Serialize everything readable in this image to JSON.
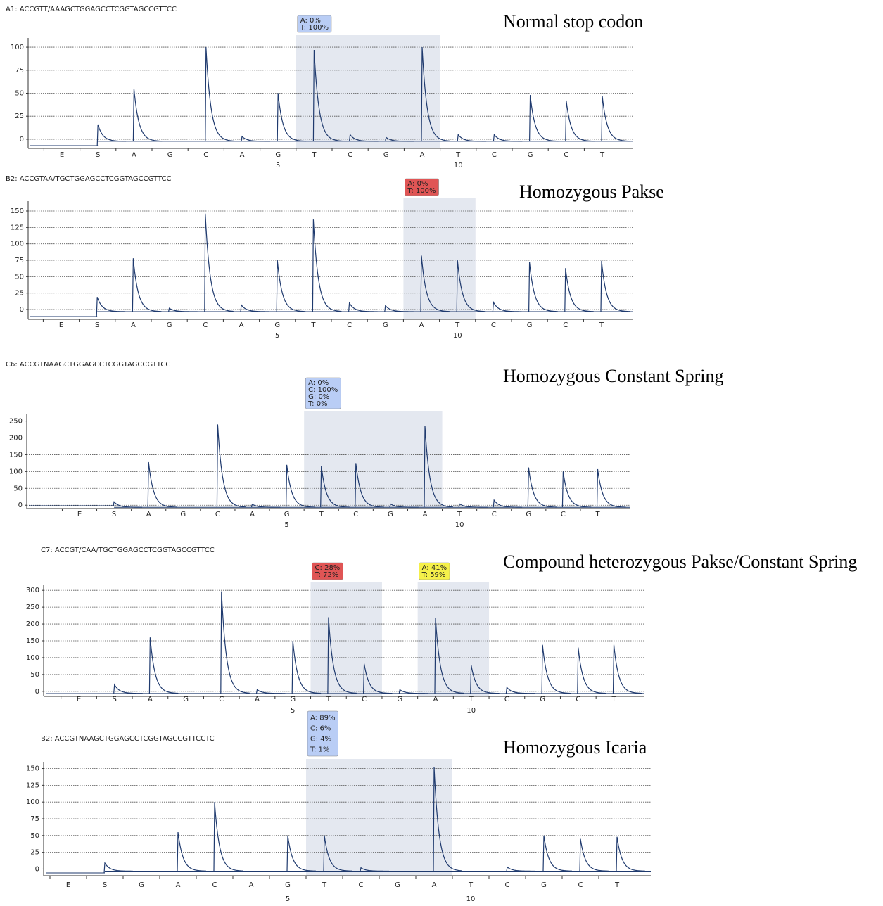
{
  "chart_data": [
    {
      "type": "pyrogram",
      "title": "A1: ACCGTT/AAAGCTGGAGCCTCGGTAGCCGTTCC",
      "annotation": "Normal stop codon",
      "categories": [
        "E",
        "S",
        "A",
        "G",
        "C",
        "A",
        "G",
        "T",
        "C",
        "G",
        "A",
        "T",
        "C",
        "G",
        "C",
        "T"
      ],
      "values": [
        0,
        16,
        55,
        0,
        100,
        3,
        50,
        97,
        5,
        2,
        100,
        5,
        5,
        48,
        42,
        47
      ],
      "ylim": [
        -10,
        110
      ],
      "yticks": [
        0,
        25,
        50,
        75,
        100
      ],
      "xticks": [
        5,
        10
      ],
      "color": "#1f3a6e",
      "grid": true,
      "highlights": [
        {
          "start": 7,
          "end": 10,
          "color": "#b9cdf5",
          "label": [
            "A: 0%",
            "T: 100%"
          ]
        }
      ]
    },
    {
      "type": "pyrogram",
      "title": "B2: ACCGTAA/TGCTGGAGCCTCGGTAGCCGTTCC",
      "annotation": "Homozygous Pakse",
      "categories": [
        "E",
        "S",
        "A",
        "G",
        "C",
        "A",
        "G",
        "T",
        "C",
        "G",
        "A",
        "T",
        "C",
        "G",
        "C",
        "T"
      ],
      "values": [
        0,
        19,
        78,
        2,
        146,
        7,
        75,
        137,
        10,
        6,
        82,
        75,
        11,
        72,
        63,
        74
      ],
      "ylim": [
        -15,
        165
      ],
      "yticks": [
        0,
        25,
        50,
        75,
        100,
        125,
        150
      ],
      "xticks": [
        5,
        10
      ],
      "color": "#1f3a6e",
      "grid": true,
      "highlights": [
        {
          "start": 10,
          "end": 11,
          "color": "#e05555",
          "label": [
            "A: 0%",
            "T: 100%"
          ]
        }
      ]
    },
    {
      "type": "pyrogram",
      "title": "C6: ACCGTNAAGCTGGAGCCTCGGTAGCCGTTCC",
      "annotation": "Homozygous Constant Spring",
      "categories": [
        "E",
        "S",
        "A",
        "G",
        "C",
        "A",
        "G",
        "T",
        "C",
        "G",
        "A",
        "T",
        "C",
        "G",
        "C",
        "T"
      ],
      "values": [
        0,
        10,
        128,
        0,
        240,
        3,
        120,
        117,
        125,
        4,
        235,
        4,
        15,
        112,
        100,
        107
      ],
      "ylim": [
        -10,
        270
      ],
      "yticks": [
        0,
        50,
        100,
        150,
        200,
        250
      ],
      "xticks": [
        5,
        10
      ],
      "color": "#1f3a6e",
      "grid": true,
      "highlights": [
        {
          "start": 7,
          "end": 10,
          "color": "#b9cdf5",
          "label": [
            "A: 0%",
            "C: 100%",
            "G: 0%",
            "T: 0%"
          ]
        }
      ]
    },
    {
      "type": "pyrogram",
      "title": "C7: ACCGT/CAA/TGCTGGAGCCTCGGTAGCCGTTCC",
      "annotation": "Compound heterozygous Pakse/Constant Spring",
      "categories": [
        "E",
        "S",
        "A",
        "G",
        "C",
        "A",
        "G",
        "T",
        "C",
        "G",
        "A",
        "T",
        "C",
        "G",
        "C",
        "T"
      ],
      "values": [
        0,
        20,
        160,
        0,
        297,
        5,
        150,
        220,
        82,
        5,
        218,
        78,
        12,
        138,
        130,
        138
      ],
      "ylim": [
        -15,
        315
      ],
      "yticks": [
        0,
        50,
        100,
        150,
        200,
        250,
        300
      ],
      "xticks": [
        5,
        10
      ],
      "color": "#1f3a6e",
      "grid": true,
      "highlights": [
        {
          "start": 7,
          "end": 8,
          "color": "#e05555",
          "label": [
            "C: 28%",
            "T: 72%"
          ]
        },
        {
          "start": 10,
          "end": 11,
          "color": "#f5f04a",
          "label": [
            "A: 41%",
            "T: 59%"
          ]
        }
      ]
    },
    {
      "type": "pyrogram",
      "title": "B2: ACCGTNAAGCTGGAGCCTCGGTAGCCGTTCCTC",
      "annotation": "Homozygous Icaria",
      "categories": [
        "E",
        "S",
        "G",
        "A",
        "C",
        "A",
        "G",
        "T",
        "C",
        "G",
        "A",
        "T",
        "C",
        "G",
        "C",
        "T"
      ],
      "values": [
        0,
        9,
        0,
        55,
        100,
        0,
        50,
        50,
        2,
        0,
        152,
        0,
        3,
        50,
        45,
        48
      ],
      "ylim": [
        -10,
        160
      ],
      "yticks": [
        0,
        25,
        50,
        75,
        100,
        125,
        150
      ],
      "xticks": [
        5,
        10
      ],
      "color": "#1f3a6e",
      "grid": true,
      "highlights": [
        {
          "start": 7,
          "end": 10,
          "color": "#b9cdf5",
          "label": [
            "A: 89%",
            "C: 6%",
            "G: 4%",
            "T: 1%"
          ]
        }
      ]
    }
  ]
}
